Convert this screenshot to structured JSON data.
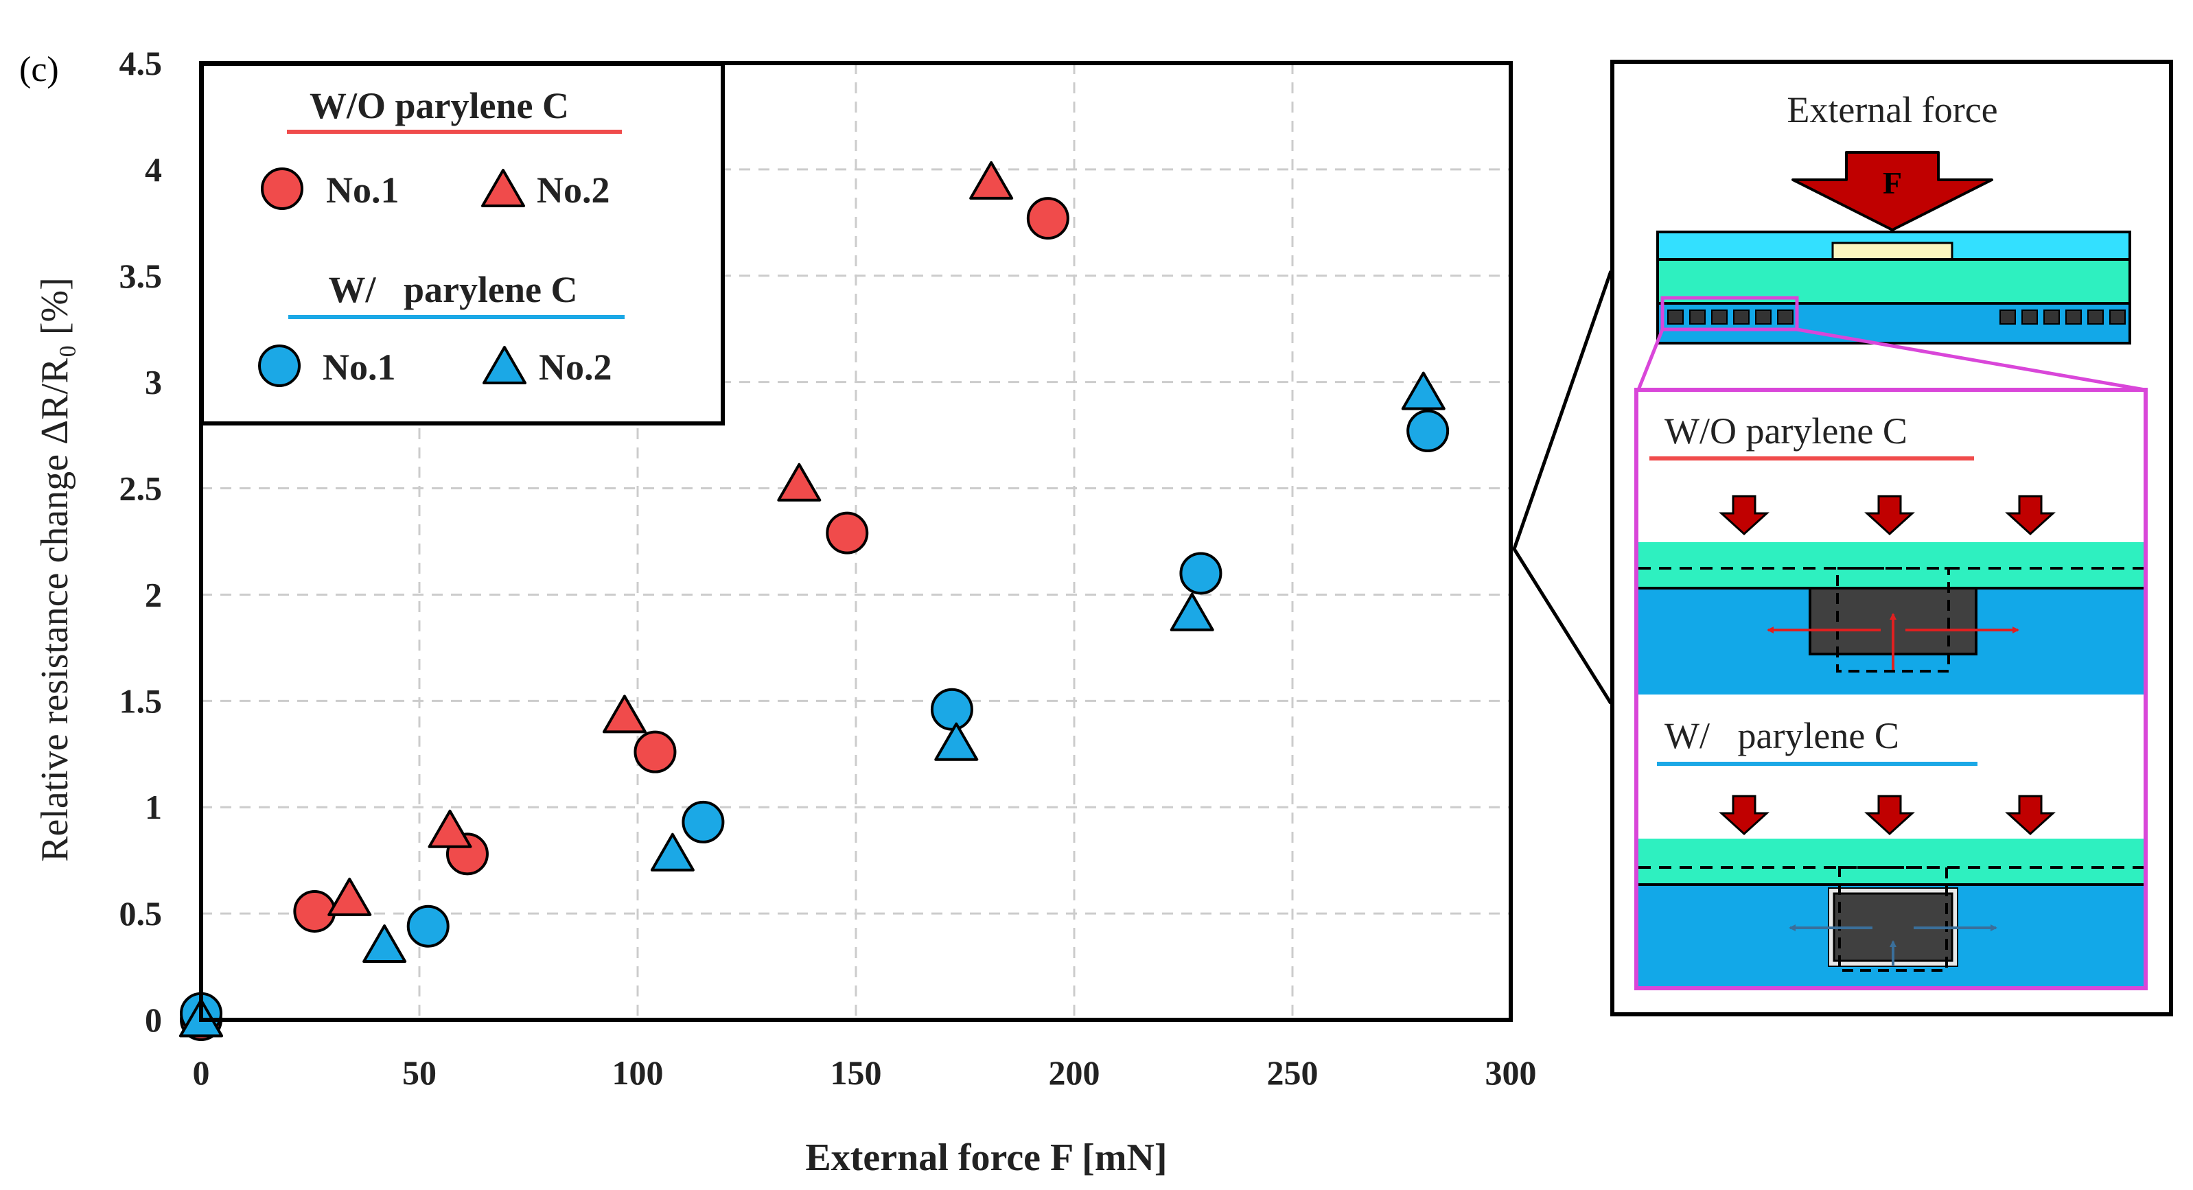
{
  "panel_label": "(c)",
  "chart_data": {
    "type": "scatter",
    "xlabel": "External force F [mN]",
    "ylabel": "Relative resistance change ΔR/R₀ [%]",
    "xlim": [
      0,
      300
    ],
    "ylim": [
      0,
      4.5
    ],
    "xticks": [
      0,
      50,
      100,
      150,
      200,
      250,
      300
    ],
    "yticks": [
      0,
      0.5,
      1,
      1.5,
      2,
      2.5,
      3,
      3.5,
      4,
      4.5
    ],
    "grid": true,
    "legend_position": "top-left",
    "legend": {
      "group1_title": "W/O parylene C",
      "group2_title": "W/   parylene C",
      "item_no1": "No.1",
      "item_no2": "No.2"
    },
    "series": [
      {
        "name": "W/O parylene C No.1",
        "marker": "circle",
        "color": "#f04b4b",
        "points": [
          [
            0,
            0
          ],
          [
            26,
            0.51
          ],
          [
            61,
            0.78
          ],
          [
            104,
            1.26
          ],
          [
            148,
            2.29
          ],
          [
            194,
            3.77
          ]
        ]
      },
      {
        "name": "W/O parylene C No.2",
        "marker": "triangle",
        "color": "#f04b4b",
        "points": [
          [
            0,
            0
          ],
          [
            34,
            0.57
          ],
          [
            57,
            0.89
          ],
          [
            97,
            1.43
          ],
          [
            137,
            2.52
          ],
          [
            181,
            3.94
          ]
        ]
      },
      {
        "name": "W/ parylene C No.1",
        "marker": "circle",
        "color": "#1ba8e6",
        "points": [
          [
            0,
            0.03
          ],
          [
            52,
            0.44
          ],
          [
            115,
            0.93
          ],
          [
            172,
            1.46
          ],
          [
            229,
            2.1
          ],
          [
            281,
            2.77
          ]
        ]
      },
      {
        "name": "W/ parylene C No.2",
        "marker": "triangle",
        "color": "#1ba8e6",
        "points": [
          [
            0,
            0
          ],
          [
            42,
            0.35
          ],
          [
            108,
            0.78
          ],
          [
            173,
            1.3
          ],
          [
            227,
            1.91
          ],
          [
            280,
            2.95
          ]
        ]
      }
    ]
  },
  "diagram": {
    "external_force_label": "External force",
    "force_symbol": "F",
    "wo_label": "W/O parylene C",
    "w_label": "W/   parylene C"
  },
  "colors": {
    "red": "#f04b4b",
    "blue": "#1ba8e6",
    "dark_red": "#c00000",
    "cyan": "#33e0ff",
    "aqua": "#2ef0c0",
    "layer_blue": "#12a8e8",
    "magenta": "#d946d9",
    "pad": "#fbf6bf"
  }
}
